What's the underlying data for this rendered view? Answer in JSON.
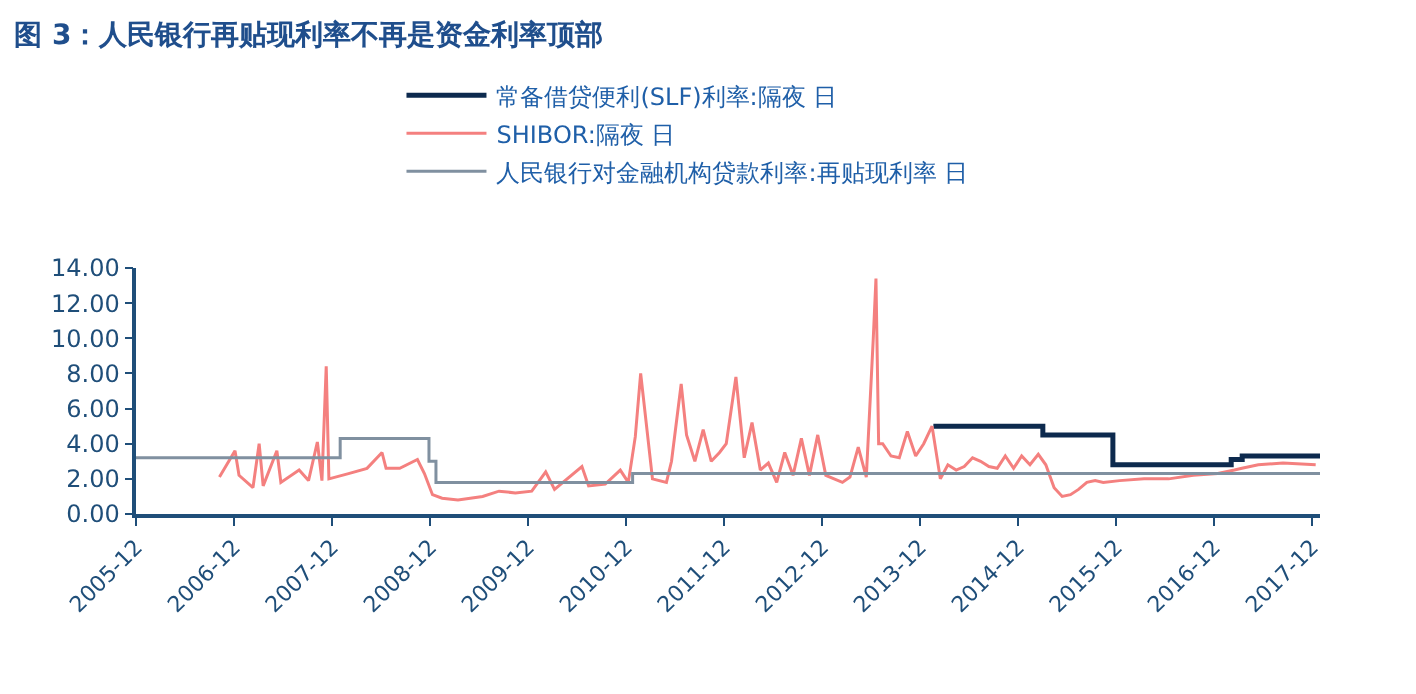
{
  "chart_data": {
    "type": "line",
    "title": "图 3：人民银行再贴现利率不再是资金利率顶部",
    "xlim": [
      "2005-12-01",
      "2017-12-31"
    ],
    "xticks": [
      "2005-12",
      "2006-12",
      "2007-12",
      "2008-12",
      "2009-12",
      "2010-12",
      "2011-12",
      "2012-12",
      "2013-12",
      "2014-12",
      "2015-12",
      "2016-12",
      "2017-12"
    ],
    "ylim": [
      0,
      14
    ],
    "yticks": [
      {
        "value": 0,
        "label": "0.00"
      },
      {
        "value": 2,
        "label": "2.00"
      },
      {
        "value": 4,
        "label": "4.00"
      },
      {
        "value": 6,
        "label": "6.00"
      },
      {
        "value": 8,
        "label": "8.00"
      },
      {
        "value": 10,
        "label": "10.00"
      },
      {
        "value": 12,
        "label": "12.00"
      },
      {
        "value": 14,
        "label": "14.00"
      }
    ],
    "legend": "top",
    "marker": "none",
    "series": [
      {
        "name": "常备借贷便利(SLF)利率:隔夜 日",
        "color": "#0d2a4e",
        "type": "step",
        "x": [
          "2014-01-20",
          "2015-03-04",
          "2015-11-20",
          "2017-02-03",
          "2017-03-16",
          "2017-12-31"
        ],
        "values": [
          5.0,
          4.5,
          2.8,
          3.1,
          3.3,
          3.3
        ]
      },
      {
        "name": "SHIBOR:隔夜 日",
        "color": "#f4807f",
        "x": [
          "2006-10-08",
          "2006-12-05",
          "2006-12-20",
          "2007-02-10",
          "2007-03-05",
          "2007-03-20",
          "2007-05-10",
          "2007-05-25",
          "2007-08-01",
          "2007-09-05",
          "2007-10-08",
          "2007-10-25",
          "2007-11-10",
          "2007-11-20",
          "2008-02-01",
          "2008-04-10",
          "2008-06-05",
          "2008-06-20",
          "2008-08-10",
          "2008-10-15",
          "2008-11-10",
          "2008-12-10",
          "2009-01-15",
          "2009-03-15",
          "2009-06-15",
          "2009-08-15",
          "2009-10-15",
          "2009-12-15",
          "2010-02-05",
          "2010-03-10",
          "2010-06-20",
          "2010-07-15",
          "2010-09-15",
          "2010-11-10",
          "2010-12-10",
          "2011-01-05",
          "2011-01-25",
          "2011-03-10",
          "2011-05-01",
          "2011-05-20",
          "2011-06-25",
          "2011-07-15",
          "2011-08-15",
          "2011-09-15",
          "2011-10-15",
          "2011-11-15",
          "2011-12-10",
          "2012-01-15",
          "2012-02-15",
          "2012-03-15",
          "2012-04-15",
          "2012-05-15",
          "2012-06-15",
          "2012-07-15",
          "2012-08-15",
          "2012-09-15",
          "2012-10-15",
          "2012-11-15",
          "2012-12-15",
          "2013-01-15",
          "2013-02-15",
          "2013-03-15",
          "2013-04-15",
          "2013-05-15",
          "2013-06-10",
          "2013-06-20",
          "2013-06-30",
          "2013-07-15",
          "2013-08-15",
          "2013-09-15",
          "2013-10-15",
          "2013-11-15",
          "2013-12-15",
          "2014-01-15",
          "2014-02-15",
          "2014-03-15",
          "2014-04-15",
          "2014-05-15",
          "2014-06-15",
          "2014-07-15",
          "2014-08-15",
          "2014-09-15",
          "2014-10-15",
          "2014-11-15",
          "2014-12-15",
          "2015-01-15",
          "2015-02-15",
          "2015-03-15",
          "2015-04-15",
          "2015-05-15",
          "2015-06-15",
          "2015-07-15",
          "2015-08-15",
          "2015-09-15",
          "2015-10-15",
          "2015-12-15",
          "2016-03-15",
          "2016-06-15",
          "2016-09-15",
          "2016-12-15",
          "2017-02-15",
          "2017-03-15",
          "2017-05-15",
          "2017-08-15",
          "2017-12-15"
        ],
        "values": [
          2.1,
          3.6,
          2.2,
          1.5,
          4.0,
          1.6,
          3.6,
          1.8,
          2.5,
          1.9,
          4.1,
          1.9,
          8.4,
          2.0,
          2.3,
          2.6,
          3.5,
          2.6,
          2.6,
          3.1,
          2.3,
          1.1,
          0.9,
          0.8,
          1.0,
          1.3,
          1.2,
          1.3,
          2.4,
          1.4,
          2.7,
          1.6,
          1.7,
          2.5,
          1.8,
          4.4,
          8.0,
          2.0,
          1.8,
          3.0,
          7.4,
          4.5,
          3.0,
          4.8,
          3.0,
          3.5,
          4.0,
          7.8,
          3.2,
          5.2,
          2.5,
          2.9,
          1.8,
          3.5,
          2.2,
          4.3,
          2.2,
          4.5,
          2.2,
          2.0,
          1.8,
          2.1,
          3.8,
          2.1,
          10.0,
          13.4,
          4.0,
          4.0,
          3.3,
          3.2,
          4.7,
          3.3,
          4.0,
          5.0,
          2.0,
          2.8,
          2.5,
          2.7,
          3.2,
          3.0,
          2.7,
          2.6,
          3.3,
          2.6,
          3.3,
          2.8,
          3.4,
          2.8,
          1.5,
          1.0,
          1.1,
          1.4,
          1.8,
          1.9,
          1.8,
          1.9,
          2.0,
          2.0,
          2.2,
          2.3,
          2.5,
          2.6,
          2.8,
          2.9,
          2.8
        ]
      },
      {
        "name": "人民银行对金融机构贷款利率:再贴现利率 日",
        "color": "#8090a0",
        "type": "step",
        "x": [
          "2005-12-01",
          "2008-01-01",
          "2008-11-27",
          "2008-12-23",
          "2010-12-26",
          "2017-12-31"
        ],
        "values": [
          3.2,
          4.3,
          3.0,
          1.8,
          2.3,
          2.3
        ]
      }
    ]
  }
}
